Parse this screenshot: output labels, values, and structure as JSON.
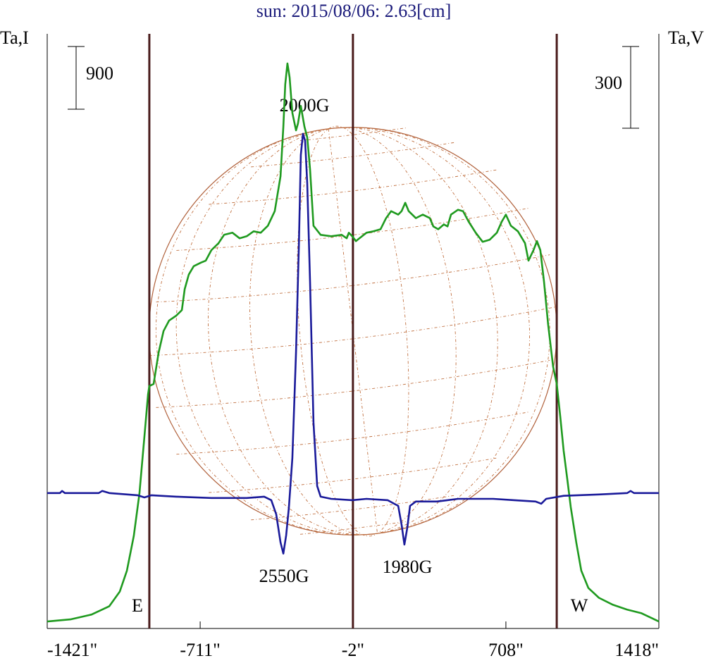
{
  "chart_data": {
    "type": "line",
    "title": "sun: 2015/08/06: 2.63[cm]",
    "ylabel": "Ta,I",
    "y2label": "Ta,V",
    "xlim": [
      -1421,
      1418
    ],
    "xticks": [
      {
        "value": -1421,
        "label": "-1421\""
      },
      {
        "value": -711,
        "label": "-711\""
      },
      {
        "value": -2,
        "label": "-2\""
      },
      {
        "value": 708,
        "label": "708\""
      },
      {
        "value": 1418,
        "label": "1418\""
      }
    ],
    "ylim": [
      0,
      8535
    ],
    "y2lim": [
      -497,
      1686
    ],
    "scalebars": [
      {
        "value": 900,
        "axis": "y"
      },
      {
        "value": 300,
        "axis": "y2"
      }
    ],
    "vlines": [
      -947,
      -2,
      944
    ],
    "annotations": [
      "2000G",
      "2550G",
      "1980G",
      "E",
      "W"
    ],
    "series": [
      {
        "name": "I",
        "color": "#1f9a1f",
        "axis": "y",
        "x": [
          -1421,
          -1313,
          -1215,
          -1133,
          -1084,
          -1051,
          -1019,
          -993,
          -970,
          -953,
          -947,
          -927,
          -904,
          -881,
          -855,
          -822,
          -796,
          -783,
          -764,
          -741,
          -708,
          -685,
          -659,
          -626,
          -600,
          -561,
          -528,
          -495,
          -463,
          -430,
          -397,
          -365,
          -338,
          -325,
          -316,
          -306,
          -296,
          -283,
          -266,
          -257,
          -244,
          -227,
          -214,
          -201,
          -185,
          -152,
          -103,
          -54,
          -31,
          -21,
          -5,
          12,
          28,
          61,
          93,
          126,
          152,
          175,
          208,
          224,
          241,
          257,
          290,
          322,
          355,
          371,
          394,
          420,
          437,
          453,
          486,
          509,
          535,
          568,
          600,
          633,
          666,
          689,
          708,
          731,
          764,
          797,
          813,
          836,
          852,
          868,
          885,
          904,
          927,
          944,
          960,
          976,
          993,
          1009,
          1035,
          1058,
          1091,
          1140,
          1205,
          1271,
          1336,
          1418
        ],
        "values": [
          100,
          130,
          200,
          320,
          530,
          830,
          1330,
          1940,
          2750,
          3360,
          3480,
          3510,
          3960,
          4270,
          4420,
          4490,
          4570,
          4870,
          5080,
          5200,
          5250,
          5280,
          5430,
          5530,
          5650,
          5680,
          5600,
          5630,
          5700,
          5680,
          5780,
          5990,
          6490,
          7200,
          7810,
          8110,
          7910,
          7400,
          7150,
          7250,
          7500,
          7200,
          7050,
          6590,
          5780,
          5650,
          5630,
          5650,
          5600,
          5680,
          5630,
          5560,
          5600,
          5680,
          5700,
          5730,
          5890,
          5990,
          5940,
          5990,
          6110,
          5990,
          5890,
          5940,
          5890,
          5770,
          5730,
          5800,
          5770,
          5940,
          6010,
          5990,
          5840,
          5680,
          5550,
          5580,
          5680,
          5840,
          5940,
          5780,
          5700,
          5530,
          5280,
          5430,
          5560,
          5430,
          4980,
          4370,
          3760,
          3510,
          3050,
          2550,
          2140,
          1740,
          1230,
          830,
          580,
          440,
          340,
          270,
          220,
          100
        ]
      },
      {
        "name": "V",
        "color": "#1a1a9a",
        "axis": "y2",
        "x": [
          -1421,
          -1362,
          -1352,
          -1339,
          -1182,
          -1166,
          -1133,
          -1002,
          -970,
          -937,
          -822,
          -659,
          -495,
          -414,
          -381,
          -358,
          -338,
          -325,
          -312,
          -299,
          -283,
          -266,
          -253,
          -244,
          -234,
          -224,
          -214,
          -201,
          -185,
          -168,
          -152,
          -103,
          -5,
          61,
          159,
          208,
          224,
          237,
          250,
          263,
          290,
          388,
          486,
          649,
          747,
          846,
          872,
          895,
          976,
          1140,
          1271,
          1287,
          1303,
          1418
        ],
        "values": [
          0,
          0,
          8,
          0,
          0,
          8,
          0,
          -8,
          -16,
          -8,
          -13,
          -18,
          -18,
          -13,
          -26,
          -78,
          -181,
          -222,
          -155,
          -52,
          129,
          517,
          905,
          1241,
          1319,
          1293,
          1138,
          776,
          259,
          26,
          -13,
          -21,
          -26,
          -21,
          -26,
          -47,
          -116,
          -189,
          -129,
          -47,
          -31,
          -31,
          -21,
          -21,
          -26,
          -31,
          -39,
          -21,
          -10,
          -5,
          0,
          8,
          0,
          0
        ]
      }
    ]
  }
}
